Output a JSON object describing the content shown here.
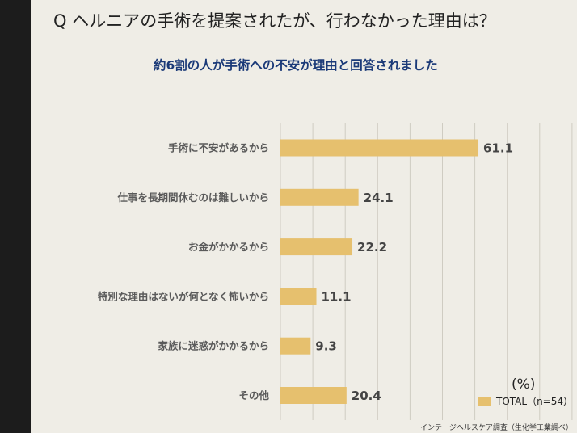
{
  "header": {
    "question": "Q ヘルニアの手術を提案されたが、行わなかった理由は？",
    "subtitle": "約6割の人が手術への不安が理由と回答されました"
  },
  "chart_data": {
    "type": "bar",
    "orientation": "horizontal",
    "categories": [
      "手術に不安があるから",
      "仕事を長期間休むのは難しいから",
      "お金がかかるから",
      "特別な理由はないが何となく怖いから",
      "家族に迷惑がかかるから",
      "その他"
    ],
    "series": [
      {
        "name": "TOTAL（n=54）",
        "values": [
          61.1,
          24.1,
          22.2,
          11.1,
          9.3,
          20.4
        ]
      }
    ],
    "value_labels": [
      "61.1",
      "24.1",
      "22.2",
      "11.1",
      "9.3",
      "20.4"
    ],
    "xlim": [
      0,
      100
    ],
    "grid": true,
    "unit_label": "(%)",
    "bar_color": "#e6c06e"
  },
  "footer": {
    "source": "インテージヘルスケア調査（生化学工業調べ）"
  }
}
